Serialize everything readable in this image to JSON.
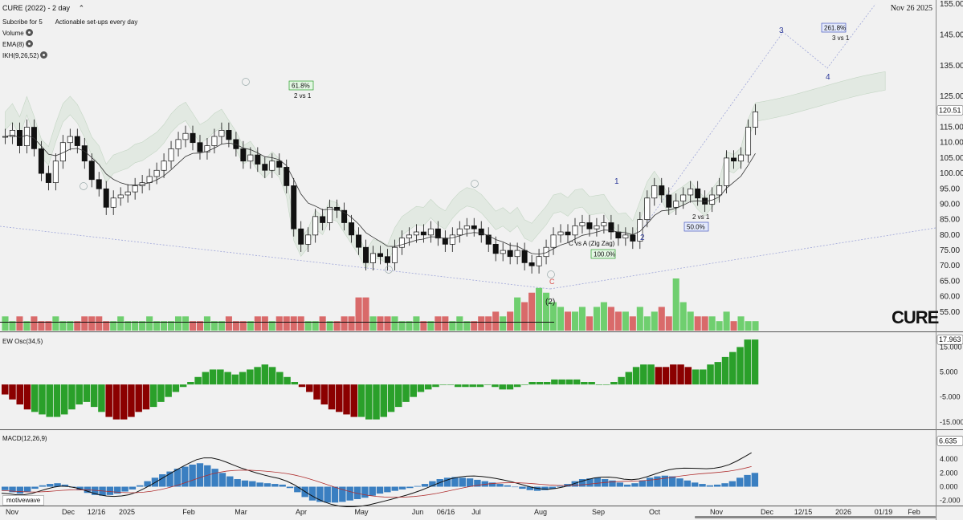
{
  "header": {
    "title": "CURE (2022) - 2 day",
    "subscribe": "Subcribe for 5",
    "tagline": "Actionable set-ups every day",
    "indicators": [
      "Volume",
      "EMA(8)",
      "IKH(9,26,52)"
    ],
    "date": "Nov 26 2025"
  },
  "symbol_watermark": "CURE",
  "vendor": "motivewave",
  "colors": {
    "up": "#2aa02a",
    "down": "#8b0000",
    "vol_up": "#6fcf6f",
    "vol_down": "#d96a6a",
    "ema": "#333333",
    "cloud": "#dfe8df",
    "macd_bar": "#3a7fc1",
    "signal": "#b03030"
  },
  "chart_data": [
    {
      "type": "candlestick",
      "title": "CURE (2022) - 2 day",
      "ylim": [
        50,
        155
      ],
      "y_ticks": [
        55,
        60,
        65,
        70,
        75,
        80,
        85,
        90,
        95,
        100,
        105,
        110,
        115,
        120,
        125,
        135,
        145,
        155
      ],
      "last_price": "120.51",
      "x_labels": [
        "Nov",
        "Dec",
        "12/16",
        "2025",
        "Feb",
        "Mar",
        "Apr",
        "May",
        "Jun",
        "06/16",
        "Jul",
        "Aug",
        "Sep",
        "Oct",
        "Nov",
        "Dec",
        "12/15",
        "2026",
        "01/19",
        "Feb"
      ],
      "closes": [
        112,
        114,
        109,
        115,
        108,
        100,
        97,
        104,
        110,
        112,
        109,
        104,
        98,
        95,
        89,
        92,
        93,
        94,
        96,
        97,
        99,
        101,
        104,
        108,
        111,
        113,
        110,
        107,
        109,
        112,
        114,
        111,
        108,
        104,
        106,
        103,
        101,
        104,
        102,
        96,
        82,
        77,
        80,
        86,
        84,
        89,
        88,
        84,
        80,
        76,
        71,
        74,
        73,
        71,
        76,
        79,
        80,
        81,
        80,
        82,
        79,
        77,
        80,
        82,
        83,
        82,
        80,
        77,
        74,
        75,
        73,
        75,
        71,
        70,
        73,
        76,
        80,
        81,
        80,
        83,
        84,
        82,
        83,
        84,
        81,
        79,
        80,
        78,
        85,
        92,
        96,
        93,
        89,
        91,
        93,
        95,
        92,
        90,
        93,
        96,
        105,
        104,
        106,
        115,
        120
      ],
      "volume": [
        3,
        2,
        3,
        2,
        3,
        2,
        2,
        3,
        2,
        2,
        2,
        3,
        3,
        3,
        2,
        2,
        3,
        2,
        2,
        2,
        3,
        2,
        2,
        2,
        3,
        3,
        2,
        2,
        3,
        2,
        2,
        3,
        2,
        2,
        2,
        3,
        3,
        2,
        3,
        3,
        3,
        3,
        2,
        2,
        3,
        2,
        2,
        3,
        3,
        7,
        7,
        3,
        3,
        3,
        3,
        2,
        2,
        3,
        2,
        2,
        3,
        3,
        2,
        3,
        2,
        2,
        3,
        3,
        4,
        3,
        4,
        7,
        6,
        8,
        9,
        8,
        6,
        5,
        4,
        4,
        5,
        3,
        5,
        6,
        5,
        4,
        4,
        3,
        5,
        3,
        4,
        5,
        3,
        11,
        6,
        4,
        3,
        3,
        3,
        2,
        4,
        2,
        3,
        2,
        2
      ],
      "ema_levels": [
        "61.8%",
        "50.0%",
        "100.0%",
        "261.8%"
      ],
      "annotations": [
        "2 vs 1",
        "2 vs 1",
        "C vs A (Zig Zag)",
        "3 vs 1",
        "1",
        "2",
        "3",
        "4",
        "C",
        "(2)"
      ]
    },
    {
      "type": "bar",
      "title": "EW Osc(34,5)",
      "last_value": "17.963",
      "y_ticks": [
        "15.000",
        "5.000",
        "-5.000",
        "-15.000"
      ],
      "ylim": [
        -17,
        19
      ],
      "values": [
        -4,
        -6,
        -8,
        -10,
        -11,
        -12,
        -13,
        -13,
        -12,
        -10,
        -8,
        -7,
        -9,
        -11,
        -13,
        -14,
        -14,
        -13,
        -11,
        -10,
        -9,
        -7,
        -5,
        -3,
        -1,
        1,
        3,
        5,
        6,
        6,
        5,
        4,
        5,
        6,
        7,
        8,
        7,
        5,
        3,
        1,
        -1,
        -3,
        -6,
        -8,
        -10,
        -11,
        -12,
        -13,
        -13,
        -14,
        -14,
        -13,
        -11,
        -9,
        -7,
        -5,
        -3,
        -2,
        -1,
        0,
        0,
        -1,
        -1,
        -1,
        -1,
        0,
        -1,
        -2,
        -2,
        -1,
        0,
        1,
        1,
        1,
        2,
        2,
        2,
        2,
        1,
        1,
        0,
        0,
        1,
        3,
        5,
        7,
        8,
        8,
        7,
        7,
        8,
        8,
        7,
        6,
        6,
        8,
        9,
        11,
        13,
        15,
        18,
        18
      ]
    },
    {
      "type": "bar",
      "title": "MACD(12,26,9)",
      "last_value": "6.635",
      "y_ticks": [
        "4.000",
        "2.000",
        "0.000",
        "-2.000"
      ],
      "ylim": [
        -2.5,
        7.5
      ],
      "values": [
        -0.5,
        -0.8,
        -1,
        -0.7,
        -0.3,
        0.2,
        0.4,
        0.5,
        0.3,
        -0.1,
        -0.5,
        -0.9,
        -1.2,
        -1.3,
        -1.2,
        -1,
        -0.7,
        -0.4,
        0.2,
        0.8,
        1.3,
        1.8,
        2.2,
        2.6,
        2.9,
        3.2,
        3.4,
        3.1,
        2.6,
        2.0,
        1.5,
        1.1,
        0.9,
        0.8,
        0.6,
        0.5,
        0.4,
        0.3,
        -0.2,
        -0.8,
        -1.5,
        -2,
        -2.2,
        -2.3,
        -2.3,
        -2.2,
        -2,
        -1.8,
        -1.6,
        -1.3,
        -1,
        -0.8,
        -0.6,
        -0.4,
        -0.2,
        0.1,
        0.4,
        0.8,
        1.1,
        1.3,
        1.4,
        1.3,
        1.2,
        1.0,
        0.8,
        0.6,
        0.4,
        0.2,
        0.0,
        -0.3,
        -0.5,
        -0.6,
        -0.5,
        -0.3,
        0.1,
        0.4,
        0.8,
        1.1,
        1.2,
        1.3,
        1.1,
        0.9,
        0.6,
        0.3,
        0.5,
        0.9,
        1.3,
        1.5,
        1.6,
        1.5,
        1.2,
        0.9,
        0.6,
        0.4,
        0.2,
        0.3,
        0.5,
        0.8,
        1.3,
        1.7,
        2.0
      ],
      "macd_line_end": 6.6,
      "signal_line_end": 4.8
    }
  ]
}
